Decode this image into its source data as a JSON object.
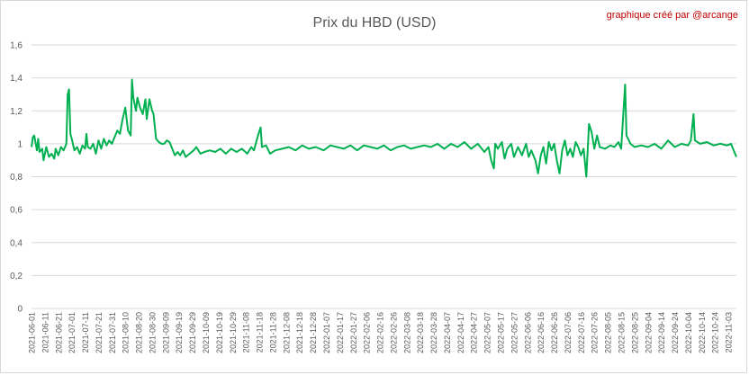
{
  "chart_data": {
    "type": "line",
    "title": "Prix du HBD (USD)",
    "credit": "graphique créé par @arcange",
    "xlabel": "",
    "ylabel": "",
    "ylim": [
      0,
      1.6
    ],
    "yticks": [
      "0",
      "0,2",
      "0,4",
      "0,6",
      "0,8",
      "1",
      "1,2",
      "1,4",
      "1,6"
    ],
    "grid": true,
    "legend": "none",
    "line_color": "#00b050",
    "x_start": "2021-06-01",
    "x_end": "2022-11-09",
    "xtick_labels": [
      "2021-06-01",
      "2021-06-11",
      "2021-06-21",
      "2021-07-01",
      "2021-07-11",
      "2021-07-21",
      "2021-07-31",
      "2021-08-10",
      "2021-08-20",
      "2021-08-30",
      "2021-09-09",
      "2021-09-19",
      "2021-09-29",
      "2021-10-09",
      "2021-10-19",
      "2021-10-29",
      "2021-11-08",
      "2021-11-18",
      "2021-11-28",
      "2021-12-08",
      "2021-12-18",
      "2021-12-28",
      "2022-01-07",
      "2022-01-17",
      "2022-01-27",
      "2022-02-06",
      "2022-02-16",
      "2022-02-26",
      "2022-03-08",
      "2022-03-18",
      "2022-03-28",
      "2022-04-07",
      "2022-04-17",
      "2022-04-27",
      "2022-05-07",
      "2022-05-17",
      "2022-05-27",
      "2022-06-06",
      "2022-06-16",
      "2022-06-26",
      "2022-07-06",
      "2022-07-16",
      "2022-07-26",
      "2022-08-05",
      "2022-08-15",
      "2022-08-25",
      "2022-09-04",
      "2022-09-14",
      "2022-09-24",
      "2022-10-04",
      "2022-10-14",
      "2022-10-24",
      "2022-11-03"
    ],
    "series": [
      {
        "name": "",
        "points": [
          [
            "2021-06-01",
            0.98
          ],
          [
            "2021-06-02",
            1.04
          ],
          [
            "2021-06-03",
            1.05
          ],
          [
            "2021-06-05",
            0.96
          ],
          [
            "2021-06-06",
            1.03
          ],
          [
            "2021-06-07",
            0.95
          ],
          [
            "2021-06-09",
            0.97
          ],
          [
            "2021-06-10",
            0.9
          ],
          [
            "2021-06-12",
            0.98
          ],
          [
            "2021-06-14",
            0.92
          ],
          [
            "2021-06-16",
            0.94
          ],
          [
            "2021-06-18",
            0.91
          ],
          [
            "2021-06-19",
            0.97
          ],
          [
            "2021-06-21",
            0.93
          ],
          [
            "2021-06-23",
            0.98
          ],
          [
            "2021-06-25",
            0.96
          ],
          [
            "2021-06-27",
            1.0
          ],
          [
            "2021-06-28",
            1.3
          ],
          [
            "2021-06-29",
            1.33
          ],
          [
            "2021-06-30",
            1.06
          ],
          [
            "2021-07-01",
            1.03
          ],
          [
            "2021-07-03",
            0.96
          ],
          [
            "2021-07-05",
            0.98
          ],
          [
            "2021-07-07",
            0.94
          ],
          [
            "2021-07-09",
            0.99
          ],
          [
            "2021-07-11",
            0.97
          ],
          [
            "2021-07-12",
            1.06
          ],
          [
            "2021-07-13",
            0.98
          ],
          [
            "2021-07-15",
            0.97
          ],
          [
            "2021-07-17",
            1.0
          ],
          [
            "2021-07-19",
            0.94
          ],
          [
            "2021-07-21",
            1.02
          ],
          [
            "2021-07-23",
            0.97
          ],
          [
            "2021-07-25",
            1.03
          ],
          [
            "2021-07-27",
            0.99
          ],
          [
            "2021-07-29",
            1.02
          ],
          [
            "2021-07-31",
            1.0
          ],
          [
            "2021-08-02",
            1.04
          ],
          [
            "2021-08-04",
            1.08
          ],
          [
            "2021-08-06",
            1.06
          ],
          [
            "2021-08-08",
            1.15
          ],
          [
            "2021-08-10",
            1.22
          ],
          [
            "2021-08-12",
            1.08
          ],
          [
            "2021-08-14",
            1.05
          ],
          [
            "2021-08-15",
            1.39
          ],
          [
            "2021-08-16",
            1.28
          ],
          [
            "2021-08-18",
            1.2
          ],
          [
            "2021-08-19",
            1.28
          ],
          [
            "2021-08-21",
            1.22
          ],
          [
            "2021-08-23",
            1.18
          ],
          [
            "2021-08-25",
            1.27
          ],
          [
            "2021-08-26",
            1.15
          ],
          [
            "2021-08-28",
            1.27
          ],
          [
            "2021-08-30",
            1.2
          ],
          [
            "2021-08-31",
            1.18
          ],
          [
            "2021-09-02",
            1.03
          ],
          [
            "2021-09-04",
            1.01
          ],
          [
            "2021-09-06",
            1.0
          ],
          [
            "2021-09-08",
            1.0
          ],
          [
            "2021-09-10",
            1.02
          ],
          [
            "2021-09-12",
            1.01
          ],
          [
            "2021-09-14",
            0.97
          ],
          [
            "2021-09-16",
            0.93
          ],
          [
            "2021-09-18",
            0.95
          ],
          [
            "2021-09-20",
            0.93
          ],
          [
            "2021-09-22",
            0.96
          ],
          [
            "2021-09-24",
            0.92
          ],
          [
            "2021-09-27",
            0.94
          ],
          [
            "2021-09-30",
            0.96
          ],
          [
            "2021-10-02",
            0.98
          ],
          [
            "2021-10-05",
            0.94
          ],
          [
            "2021-10-08",
            0.95
          ],
          [
            "2021-10-12",
            0.96
          ],
          [
            "2021-10-16",
            0.95
          ],
          [
            "2021-10-20",
            0.97
          ],
          [
            "2021-10-24",
            0.94
          ],
          [
            "2021-10-28",
            0.97
          ],
          [
            "2021-11-01",
            0.95
          ],
          [
            "2021-11-05",
            0.97
          ],
          [
            "2021-11-09",
            0.94
          ],
          [
            "2021-11-12",
            0.98
          ],
          [
            "2021-11-14",
            0.96
          ],
          [
            "2021-11-17",
            1.05
          ],
          [
            "2021-11-19",
            1.1
          ],
          [
            "2021-11-20",
            0.98
          ],
          [
            "2021-11-23",
            0.99
          ],
          [
            "2021-11-26",
            0.94
          ],
          [
            "2021-11-30",
            0.96
          ],
          [
            "2021-12-05",
            0.97
          ],
          [
            "2021-12-10",
            0.98
          ],
          [
            "2021-12-15",
            0.96
          ],
          [
            "2021-12-20",
            0.99
          ],
          [
            "2021-12-25",
            0.97
          ],
          [
            "2021-12-30",
            0.98
          ],
          [
            "2022-01-05",
            0.96
          ],
          [
            "2022-01-10",
            0.99
          ],
          [
            "2022-01-15",
            0.98
          ],
          [
            "2022-01-20",
            0.97
          ],
          [
            "2022-01-25",
            0.99
          ],
          [
            "2022-01-30",
            0.96
          ],
          [
            "2022-02-04",
            0.99
          ],
          [
            "2022-02-09",
            0.98
          ],
          [
            "2022-02-14",
            0.97
          ],
          [
            "2022-02-19",
            0.99
          ],
          [
            "2022-02-24",
            0.96
          ],
          [
            "2022-03-01",
            0.98
          ],
          [
            "2022-03-06",
            0.99
          ],
          [
            "2022-03-11",
            0.97
          ],
          [
            "2022-03-16",
            0.98
          ],
          [
            "2022-03-21",
            0.99
          ],
          [
            "2022-03-26",
            0.98
          ],
          [
            "2022-03-31",
            1.0
          ],
          [
            "2022-04-05",
            0.97
          ],
          [
            "2022-04-10",
            1.0
          ],
          [
            "2022-04-15",
            0.98
          ],
          [
            "2022-04-20",
            1.01
          ],
          [
            "2022-04-25",
            0.97
          ],
          [
            "2022-04-30",
            1.0
          ],
          [
            "2022-05-05",
            0.95
          ],
          [
            "2022-05-08",
            0.98
          ],
          [
            "2022-05-10",
            0.9
          ],
          [
            "2022-05-12",
            0.85
          ],
          [
            "2022-05-13",
            1.0
          ],
          [
            "2022-05-15",
            0.97
          ],
          [
            "2022-05-18",
            1.01
          ],
          [
            "2022-05-20",
            0.91
          ],
          [
            "2022-05-22",
            0.97
          ],
          [
            "2022-05-25",
            1.0
          ],
          [
            "2022-05-27",
            0.92
          ],
          [
            "2022-05-30",
            0.98
          ],
          [
            "2022-06-02",
            0.93
          ],
          [
            "2022-06-05",
            1.0
          ],
          [
            "2022-06-07",
            0.92
          ],
          [
            "2022-06-09",
            0.96
          ],
          [
            "2022-06-12",
            0.9
          ],
          [
            "2022-06-14",
            0.82
          ],
          [
            "2022-06-16",
            0.93
          ],
          [
            "2022-06-18",
            0.98
          ],
          [
            "2022-06-20",
            0.88
          ],
          [
            "2022-06-22",
            1.01
          ],
          [
            "2022-06-24",
            0.96
          ],
          [
            "2022-06-26",
            1.0
          ],
          [
            "2022-06-28",
            0.9
          ],
          [
            "2022-06-30",
            0.82
          ],
          [
            "2022-07-02",
            0.96
          ],
          [
            "2022-07-04",
            1.02
          ],
          [
            "2022-07-06",
            0.93
          ],
          [
            "2022-07-08",
            0.97
          ],
          [
            "2022-07-10",
            0.92
          ],
          [
            "2022-07-12",
            1.01
          ],
          [
            "2022-07-14",
            0.98
          ],
          [
            "2022-07-16",
            0.93
          ],
          [
            "2022-07-18",
            0.97
          ],
          [
            "2022-07-20",
            0.8
          ],
          [
            "2022-07-22",
            1.12
          ],
          [
            "2022-07-24",
            1.07
          ],
          [
            "2022-07-26",
            0.97
          ],
          [
            "2022-07-28",
            1.05
          ],
          [
            "2022-07-30",
            0.98
          ],
          [
            "2022-08-03",
            0.97
          ],
          [
            "2022-08-07",
            0.99
          ],
          [
            "2022-08-10",
            0.98
          ],
          [
            "2022-08-13",
            1.01
          ],
          [
            "2022-08-15",
            0.97
          ],
          [
            "2022-08-18",
            1.36
          ],
          [
            "2022-08-19",
            1.05
          ],
          [
            "2022-08-22",
            1.0
          ],
          [
            "2022-08-25",
            0.98
          ],
          [
            "2022-08-30",
            0.99
          ],
          [
            "2022-09-04",
            0.98
          ],
          [
            "2022-09-09",
            1.0
          ],
          [
            "2022-09-14",
            0.97
          ],
          [
            "2022-09-19",
            1.02
          ],
          [
            "2022-09-24",
            0.98
          ],
          [
            "2022-09-29",
            1.0
          ],
          [
            "2022-10-04",
            0.99
          ],
          [
            "2022-10-06",
            1.02
          ],
          [
            "2022-10-08",
            1.18
          ],
          [
            "2022-10-09",
            1.02
          ],
          [
            "2022-10-13",
            1.0
          ],
          [
            "2022-10-18",
            1.01
          ],
          [
            "2022-10-23",
            0.99
          ],
          [
            "2022-10-28",
            1.0
          ],
          [
            "2022-11-02",
            0.99
          ],
          [
            "2022-11-05",
            1.0
          ],
          [
            "2022-11-07",
            0.96
          ],
          [
            "2022-11-09",
            0.92
          ]
        ]
      }
    ]
  }
}
